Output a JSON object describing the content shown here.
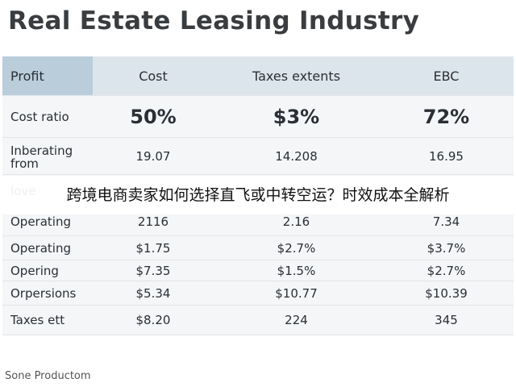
{
  "header": {
    "title": "Real Estate Leasing Industry"
  },
  "table": {
    "columns": [
      "Profit",
      "Cost",
      "Taxes extents",
      "EBC"
    ],
    "rows": [
      [
        "Cost ratio",
        "50%",
        "$3%",
        "72%"
      ],
      [
        "Inberating from",
        "19.07",
        "14.208",
        "16.95"
      ],
      [
        "love"
      ],
      [
        "Operating",
        "2116",
        "2.16",
        "7.34"
      ],
      [
        "Operating",
        "$1.75",
        "$2.7%",
        "$3.7%"
      ],
      [
        "Opering",
        "$7.35",
        "$1.5%",
        "$2.7%"
      ],
      [
        "Orpersions",
        "$5.34",
        "$10.77",
        "$10.39"
      ],
      [
        "Taxes ett",
        "$8.20",
        "224",
        "345"
      ]
    ]
  },
  "banner": {
    "text": "跨境电商卖家如何选择直飞或中转空运？时效成本全解析"
  },
  "footer": {
    "text": "Sone Productom"
  }
}
